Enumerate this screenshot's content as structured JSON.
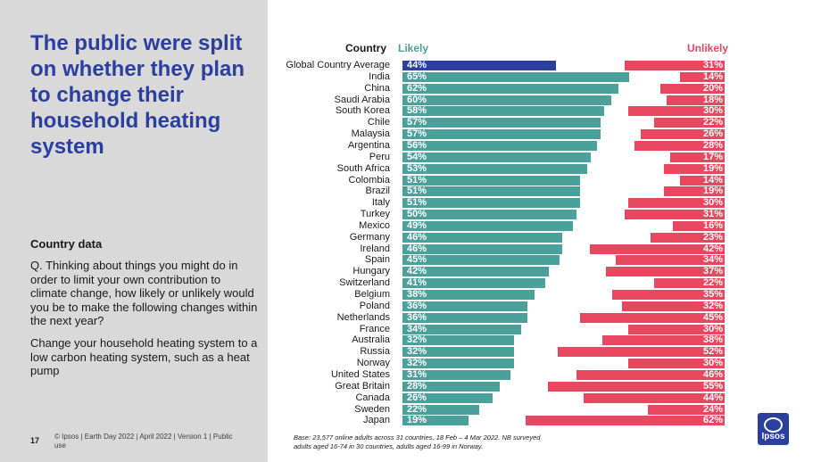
{
  "title": "The public were split on whether they plan to change their household heating system",
  "section_label": "Country data",
  "question": "Q. Thinking about things you might do in order to limit your own contribution to climate change, how likely or unlikely would you be to make the following changes within the next year?",
  "subquestion": "Change your household heating system to a low carbon heating system, such as a heat pump",
  "page_number": "17",
  "footer": "© Ipsos | Earth Day 2022 | April 2022 | Version 1 | Public use",
  "base_note": "Base: 23,577 online adults across 31 countries,  18 Feb – 4 Mar 2022. NB surveyed adults aged 16-74 in 30 countries, adults aged 16-99 in Norway.",
  "logo_text": "Ipsos",
  "colors": {
    "likely": "#4aa09b",
    "global": "#2b3f9f",
    "unlikely": "#e8485f",
    "title": "#2b3f9f"
  },
  "chart_data": {
    "type": "bar",
    "orientation": "horizontal",
    "header_country": "Country",
    "header_likely": "Likely",
    "header_unlikely": "Unlikely",
    "categories": [
      "Global Country Average",
      "India",
      "China",
      "Saudi Arabia",
      "South Korea",
      "Chile",
      "Malaysia",
      "Argentina",
      "Peru",
      "South Africa",
      "Colombia",
      "Brazil",
      "Italy",
      "Turkey",
      "Mexico",
      "Germany",
      "Ireland",
      "Spain",
      "Hungary",
      "Switzerland",
      "Belgium",
      "Poland",
      "Netherlands",
      "France",
      "Australia",
      "Russia",
      "Norway",
      "United States",
      "Great Britain",
      "Canada",
      "Sweden",
      "Japan"
    ],
    "series": [
      {
        "name": "Likely",
        "values": [
          44,
          65,
          62,
          60,
          58,
          57,
          57,
          56,
          54,
          53,
          51,
          51,
          51,
          50,
          49,
          46,
          46,
          45,
          42,
          41,
          38,
          36,
          36,
          34,
          32,
          32,
          32,
          31,
          28,
          26,
          22,
          19
        ]
      },
      {
        "name": "Unlikely",
        "values": [
          31,
          14,
          20,
          18,
          30,
          22,
          26,
          28,
          17,
          19,
          14,
          19,
          30,
          31,
          16,
          23,
          42,
          34,
          37,
          22,
          35,
          32,
          45,
          30,
          38,
          52,
          30,
          46,
          55,
          44,
          24,
          62
        ]
      }
    ],
    "unit": "%"
  }
}
